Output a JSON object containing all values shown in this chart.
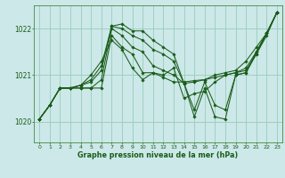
{
  "bg_color": "#cce8e8",
  "grid_color": "#99ccbb",
  "line_color": "#1a5c1a",
  "marker_color": "#1a5c1a",
  "title": "Graphe pression niveau de la mer (hPa)",
  "xlim": [
    -0.5,
    23.5
  ],
  "ylim": [
    1019.55,
    1022.5
  ],
  "yticks": [
    1020,
    1021,
    1022
  ],
  "xticks": [
    0,
    1,
    2,
    3,
    4,
    5,
    6,
    7,
    8,
    9,
    10,
    11,
    12,
    13,
    14,
    15,
    16,
    17,
    18,
    19,
    20,
    21,
    22,
    23
  ],
  "series": [
    [
      1020.05,
      1020.35,
      1020.72,
      1020.72,
      1020.72,
      1020.72,
      1020.72,
      1021.85,
      1021.6,
      1021.45,
      1021.05,
      1021.05,
      1020.95,
      1020.85,
      1020.85,
      1020.88,
      1020.9,
      1020.95,
      1021.0,
      1021.05,
      1021.1,
      1021.45,
      1021.85,
      1022.35
    ],
    [
      1020.05,
      1020.35,
      1020.72,
      1020.72,
      1020.72,
      1020.72,
      1020.9,
      1022.0,
      1021.85,
      1021.6,
      1021.5,
      1021.2,
      1021.1,
      1021.0,
      1020.82,
      1020.85,
      1020.9,
      1021.0,
      1021.05,
      1021.1,
      1021.3,
      1021.6,
      1021.9,
      1022.35
    ],
    [
      1020.05,
      1020.35,
      1020.72,
      1020.72,
      1020.78,
      1020.85,
      1021.1,
      1022.05,
      1022.0,
      1021.85,
      1021.75,
      1021.55,
      1021.45,
      1021.3,
      1020.82,
      1020.25,
      1020.85,
      1020.35,
      1020.25,
      1021.0,
      1021.05,
      1021.45,
      1021.9,
      1022.35
    ],
    [
      1020.05,
      1020.35,
      1020.72,
      1020.72,
      1020.78,
      1020.9,
      1021.2,
      1022.05,
      1022.1,
      1021.95,
      1021.95,
      1021.75,
      1021.6,
      1021.45,
      1020.82,
      1020.1,
      1020.72,
      1020.1,
      1020.05,
      1021.0,
      1021.05,
      1021.5,
      1021.9,
      1022.35
    ],
    [
      1020.05,
      1020.35,
      1020.72,
      1020.72,
      1020.78,
      1021.0,
      1021.3,
      1021.75,
      1021.55,
      1021.15,
      1020.9,
      1021.05,
      1021.0,
      1021.15,
      1020.5,
      1020.6,
      1020.65,
      1020.85,
      1021.0,
      1021.05,
      1021.15,
      1021.5,
      1021.9,
      1022.35
    ]
  ]
}
